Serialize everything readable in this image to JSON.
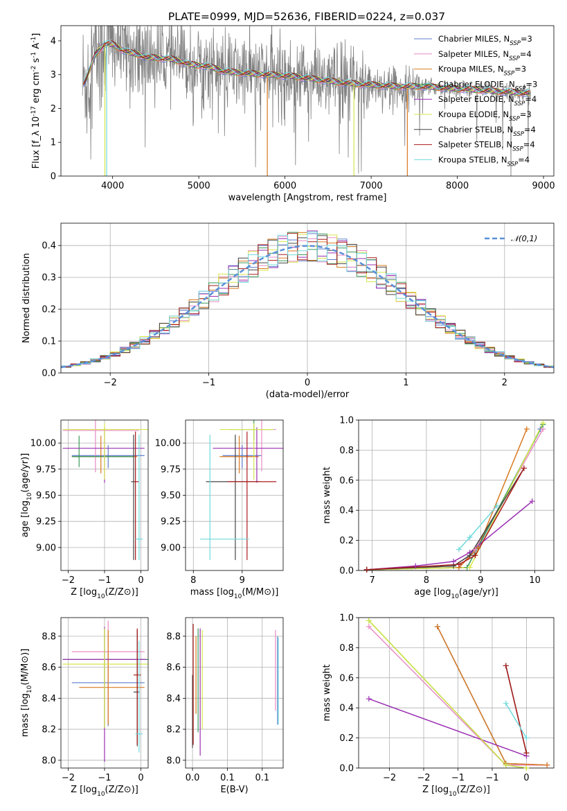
{
  "figure": {
    "title": "PLATE=0999, MJD=52636, FIBERID=0224, z=0.037"
  },
  "series_styles": [
    {
      "name": "Chabrier MILES, N$_{SSP}$=3",
      "color": "#5b7ccc"
    },
    {
      "name": "Salpeter MILES, N$_{SSP}$=4",
      "color": "#e98bc4"
    },
    {
      "name": "Kroupa MILES, N$_{SSP}$=3",
      "color": "#d9791e"
    },
    {
      "name": "Chabrier ELODIE, N$_{SSP}$=3",
      "color": "#3a9a5a"
    },
    {
      "name": "Salpeter ELODIE, N$_{SSP}$=4",
      "color": "#9a2fb2"
    },
    {
      "name": "Kroupa ELODIE, N$_{SSP}$=3",
      "color": "#d6e64a"
    },
    {
      "name": "Chabrier STELIB, N$_{SSP}$=4",
      "color": "#444444"
    },
    {
      "name": "Salpeter STELIB, N$_{SSP}$=4",
      "color": "#aa1a1a"
    },
    {
      "name": "Kroupa STELIB, N$_{SSP}$=4",
      "color": "#6fd9dc"
    }
  ],
  "chart_data": [
    {
      "type": "line",
      "title": "PLATE=0999, MJD=52636, FIBERID=0224, z=0.037",
      "xlabel": "wavelength [Angstrom, rest frame]",
      "ylabel": "Flux [f_λ 10^-17 erg cm^-2 s^-1 A^-1]",
      "xlim": [
        3400,
        9120
      ],
      "ylim": [
        0,
        4.45
      ],
      "xticks": [
        4000,
        5000,
        6000,
        7000,
        8000,
        9000
      ],
      "yticks": [
        0,
        1,
        2,
        3,
        4
      ],
      "data_color": "#808080",
      "model": {
        "x": [
          3650,
          3700,
          3800,
          3900,
          4000,
          4100,
          4200,
          4300,
          4400,
          4500,
          4700,
          4900,
          5100,
          5300,
          5500,
          5800,
          6100,
          6400,
          6700,
          7000,
          7300,
          7600,
          7900,
          8200,
          8500,
          8850
        ],
        "y": [
          2.7,
          2.9,
          3.6,
          3.9,
          3.9,
          3.75,
          3.65,
          3.6,
          3.5,
          3.5,
          3.45,
          3.3,
          3.25,
          3.1,
          3.05,
          3.0,
          2.95,
          2.85,
          2.75,
          2.7,
          2.65,
          2.65,
          2.6,
          2.55,
          2.5,
          2.45
        ]
      },
      "legend": [
        "Chabrier MILES, N$_{SSP}$=3",
        "Salpeter MILES, N$_{SSP}$=4",
        "Kroupa MILES, N$_{SSP}$=3",
        "Chabrier ELODIE, N$_{SSP}$=3",
        "Salpeter ELODIE, N$_{SSP}$=4",
        "Kroupa ELODIE, N$_{SSP}$=3",
        "Chabrier STELIB, N$_{SSP}$=4",
        "Salpeter STELIB, N$_{SSP}$=4",
        "Kroupa STELIB, N$_{SSP}$=4"
      ],
      "legend_position": "right"
    },
    {
      "type": "histogram",
      "xlabel": "(data-model)/error",
      "ylabel": "Normed distribution",
      "xlim": [
        -2.5,
        2.5
      ],
      "ylim": [
        0,
        0.47
      ],
      "xticks": [
        -2,
        -1,
        0,
        1,
        2
      ],
      "yticks": [
        0.0,
        0.1,
        0.2,
        0.3,
        0.4
      ],
      "bin_width": 0.1,
      "bin_start": -2.5,
      "reference_curve": {
        "name": "𝒩(0,1)",
        "mean": 0,
        "sigma": 1
      },
      "legend": [
        "𝒩(0,1)"
      ],
      "legend_position": "top-right"
    },
    {
      "type": "errorbar",
      "xlabel": "Z [log10(Z/Z⊙)]",
      "ylabel": "age  [log10(age/yr)]",
      "xlim": [
        -2.2,
        0.2
      ],
      "ylim": [
        8.78,
        10.22
      ],
      "xticks": [
        -2,
        -1,
        0
      ],
      "yticks": [
        9.0,
        9.25,
        9.5,
        9.75,
        10.0
      ],
      "points": [
        {
          "series": 0,
          "x": -0.9,
          "y": 9.88,
          "xerr": [
            1.0,
            1.0
          ],
          "yerr": [
            0.12,
            0.1
          ]
        },
        {
          "series": 1,
          "x": -1.25,
          "y": 10.12,
          "xerr": [
            0.9,
            1.2
          ],
          "yerr": [
            0.4,
            0.1
          ]
        },
        {
          "series": 2,
          "x": -1.1,
          "y": 9.87,
          "xerr": [
            0.8,
            1.0
          ],
          "yerr": [
            0.16,
            0.2
          ]
        },
        {
          "series": 3,
          "x": -1.7,
          "y": 9.87,
          "xerr": [
            0.2,
            1.5
          ],
          "yerr": [
            0.1,
            0.2
          ]
        },
        {
          "series": 4,
          "x": -1.0,
          "y": 9.95,
          "xerr": [
            1.15,
            1.1
          ],
          "yerr": [
            0.33,
            0.2
          ]
        },
        {
          "series": 5,
          "x": -1.0,
          "y": 10.13,
          "xerr": [
            1.15,
            1.2
          ],
          "yerr": [
            0.48,
            0.06
          ]
        },
        {
          "series": 6,
          "x": -0.2,
          "y": 9.63,
          "xerr": [
            0.07,
            0.06
          ],
          "yerr": [
            0.75,
            0.45
          ]
        },
        {
          "series": 7,
          "x": -0.15,
          "y": 9.63,
          "xerr": [
            0.05,
            0.1
          ],
          "yerr": [
            0.75,
            0.48
          ]
        },
        {
          "series": 8,
          "x": -0.05,
          "y": 9.08,
          "xerr": [
            0.1,
            0.1
          ],
          "yerr": [
            0.2,
            1.0
          ]
        }
      ]
    },
    {
      "type": "errorbar",
      "xlabel": "mass [log10(M/M⊙)]",
      "xlim": [
        7.92,
        8.92
      ],
      "ylim": [
        8.78,
        10.22
      ],
      "xticks": [
        8.0,
        8.5
      ],
      "yticks": [
        9.0,
        9.25,
        9.5,
        9.75,
        10.0
      ],
      "points": [
        {
          "series": 0,
          "x": 8.5,
          "y": 9.88,
          "xerr": [
            0.2,
            0.2
          ],
          "yerr": [
            0.12,
            0.1
          ]
        },
        {
          "series": 1,
          "x": 8.7,
          "y": 10.13,
          "xerr": [
            0.25,
            0.15
          ],
          "yerr": [
            0.4,
            0.1
          ]
        },
        {
          "series": 2,
          "x": 8.47,
          "y": 9.87,
          "xerr": [
            0.2,
            0.2
          ],
          "yerr": [
            0.16,
            0.2
          ]
        },
        {
          "series": 3,
          "x": 8.62,
          "y": 10.13,
          "xerr": [
            0.25,
            0.2
          ],
          "yerr": [
            0.1,
            0.1
          ]
        },
        {
          "series": 4,
          "x": 8.65,
          "y": 9.95,
          "xerr": [
            0.45,
            0.3
          ],
          "yerr": [
            0.33,
            0.2
          ]
        },
        {
          "series": 5,
          "x": 8.62,
          "y": 10.13,
          "xerr": [
            0.35,
            0.2
          ],
          "yerr": [
            0.48,
            0.06
          ]
        },
        {
          "series": 6,
          "x": 8.43,
          "y": 9.63,
          "xerr": [
            0.3,
            0.25
          ],
          "yerr": [
            0.75,
            0.45
          ]
        },
        {
          "series": 7,
          "x": 8.55,
          "y": 9.63,
          "xerr": [
            0.2,
            0.3
          ],
          "yerr": [
            0.75,
            0.48
          ]
        },
        {
          "series": 8,
          "x": 8.17,
          "y": 9.08,
          "xerr": [
            0.1,
            0.4
          ],
          "yerr": [
            0.2,
            1.0
          ]
        }
      ]
    },
    {
      "type": "line",
      "xlabel": "age  [log10(age/yr)]",
      "ylabel": "mass weight",
      "xlim": [
        6.75,
        10.35
      ],
      "ylim": [
        0.0,
        1.0
      ],
      "xticks": [
        7,
        8,
        9,
        10
      ],
      "yticks": [
        0.0,
        0.2,
        0.4,
        0.6,
        0.8,
        1.0
      ],
      "series": [
        {
          "series": 0,
          "x": [
            6.9,
            8.6,
            8.95,
            10.1
          ],
          "y": [
            0.005,
            0.02,
            0.15,
            0.94
          ]
        },
        {
          "series": 1,
          "x": [
            6.9,
            8.6,
            8.9,
            10.15
          ],
          "y": [
            0.005,
            0.02,
            0.14,
            0.94
          ]
        },
        {
          "series": 2,
          "x": [
            6.9,
            8.6,
            8.95,
            9.85
          ],
          "y": [
            0.005,
            0.02,
            0.15,
            0.94
          ]
        },
        {
          "series": 3,
          "x": [
            6.9,
            8.75,
            10.15
          ],
          "y": [
            0.005,
            0.02,
            0.97
          ]
        },
        {
          "series": 4,
          "x": [
            6.9,
            7.8,
            8.5,
            8.8,
            9.95
          ],
          "y": [
            0.005,
            0.03,
            0.06,
            0.12,
            0.46
          ]
        },
        {
          "series": 5,
          "x": [
            6.9,
            8.8,
            10.15
          ],
          "y": [
            0.005,
            0.02,
            0.98
          ]
        },
        {
          "series": 6,
          "x": [
            6.9,
            8.5,
            8.8,
            9.8
          ],
          "y": [
            0.005,
            0.03,
            0.1,
            0.68
          ]
        },
        {
          "series": 7,
          "x": [
            6.9,
            8.6,
            8.9,
            9.8
          ],
          "y": [
            0.005,
            0.04,
            0.1,
            0.68
          ]
        },
        {
          "series": 8,
          "x": [
            8.6,
            8.8,
            9.3
          ],
          "y": [
            0.14,
            0.22,
            0.43
          ]
        }
      ]
    },
    {
      "type": "errorbar",
      "xlabel": "Z [log10(Z/Z⊙)]",
      "ylabel": "mass [log10(M/M⊙)]",
      "xlim": [
        -2.2,
        0.2
      ],
      "ylim": [
        7.95,
        8.92
      ],
      "xticks": [
        -2,
        -1,
        0
      ],
      "yticks": [
        8.0,
        8.2,
        8.4,
        8.6,
        8.8
      ],
      "points": [
        {
          "series": 0,
          "x": -0.9,
          "y": 8.5,
          "xerr": [
            1.0,
            1.0
          ],
          "yerr": [
            0.28,
            0.2
          ]
        },
        {
          "series": 1,
          "x": -0.9,
          "y": 8.7,
          "xerr": [
            1.0,
            1.0
          ],
          "yerr": [
            0.45,
            0.2
          ]
        },
        {
          "series": 2,
          "x": -0.9,
          "y": 8.47,
          "xerr": [
            0.8,
            1.0
          ],
          "yerr": [
            0.24,
            0.37
          ]
        },
        {
          "series": 3,
          "x": -1.0,
          "y": 8.65,
          "xerr": [
            1.15,
            1.2
          ],
          "yerr": [
            0.44,
            0.2
          ]
        },
        {
          "series": 4,
          "x": -1.0,
          "y": 8.65,
          "xerr": [
            1.15,
            1.15
          ],
          "yerr": [
            0.66,
            0.21
          ]
        },
        {
          "series": 5,
          "x": -1.0,
          "y": 8.62,
          "xerr": [
            1.15,
            1.2
          ],
          "yerr": [
            0.41,
            0.23
          ]
        },
        {
          "series": 6,
          "x": -0.1,
          "y": 8.44,
          "xerr": [
            0.1,
            0.07
          ],
          "yerr": [
            0.35,
            0.4
          ]
        },
        {
          "series": 7,
          "x": -0.1,
          "y": 8.55,
          "xerr": [
            0.1,
            0.1
          ],
          "yerr": [
            0.45,
            0.3
          ]
        },
        {
          "series": 8,
          "x": -0.05,
          "y": 8.17,
          "xerr": [
            0.1,
            0.1
          ],
          "yerr": [
            0.12,
            0.6
          ]
        }
      ]
    },
    {
      "type": "errorbar",
      "xlabel": "E(B-V)",
      "xlim": [
        -0.01,
        0.13
      ],
      "ylim": [
        7.95,
        8.92
      ],
      "xticks": [
        0.0,
        0.05,
        0.1
      ],
      "yticks": [
        8.0,
        8.2,
        8.4,
        8.6,
        8.8
      ],
      "points": [
        {
          "series": 0,
          "x": 0.122,
          "y": 8.5,
          "yerr": [
            0.27,
            0.3
          ]
        },
        {
          "series": 1,
          "x": 0.119,
          "y": 8.7,
          "yerr": [
            0.38,
            0.14
          ]
        },
        {
          "series": 2,
          "x": 0.005,
          "y": 8.5,
          "yerr": [
            0.2,
            0.3
          ]
        },
        {
          "series": 3,
          "x": 0.008,
          "y": 8.6,
          "yerr": [
            0.42,
            0.25
          ]
        },
        {
          "series": 4,
          "x": 0.011,
          "y": 8.65,
          "yerr": [
            0.62,
            0.2
          ]
        },
        {
          "series": 5,
          "x": 0.014,
          "y": 8.6,
          "yerr": [
            0.4,
            0.24
          ]
        },
        {
          "series": 6,
          "x": 0.0,
          "y": 8.45,
          "yerr": [
            0.37,
            0.1
          ]
        },
        {
          "series": 7,
          "x": 0.001,
          "y": 8.55,
          "yerr": [
            0.45,
            0.33
          ]
        },
        {
          "series": 8,
          "x": 0.123,
          "y": 8.5,
          "yerr": [
            0.27,
            0.29
          ]
        }
      ]
    },
    {
      "type": "line",
      "xlabel": "Z [log10(Z/Z⊙)]",
      "ylabel": "mass weight",
      "xlim": [
        -2.45,
        0.4
      ],
      "ylim": [
        0.0,
        1.0
      ],
      "xticks": [
        -2.0,
        -1.5,
        -1.0,
        -0.5,
        0.0
      ],
      "yticks": [
        0.0,
        0.2,
        0.4,
        0.6,
        0.8,
        1.0
      ],
      "series": [
        {
          "series": 0,
          "x": [
            -1.3,
            -0.3,
            0.3
          ],
          "y": [
            0.94,
            0.03,
            0.02
          ]
        },
        {
          "series": 1,
          "x": [
            -2.3,
            -0.3,
            0.3
          ],
          "y": [
            0.94,
            0.02,
            0.02
          ]
        },
        {
          "series": 2,
          "x": [
            -1.3,
            -0.3,
            0.3
          ],
          "y": [
            0.94,
            0.03,
            0.02
          ]
        },
        {
          "series": 3,
          "x": [
            -2.3,
            -0.3,
            0.0
          ],
          "y": [
            0.98,
            0.02,
            0.0
          ]
        },
        {
          "series": 4,
          "x": [
            -2.3,
            0.0
          ],
          "y": [
            0.46,
            0.08
          ]
        },
        {
          "series": 5,
          "x": [
            -2.3,
            -0.3,
            0.0
          ],
          "y": [
            0.98,
            0.02,
            0.0
          ]
        },
        {
          "series": 6,
          "x": [
            -0.3,
            0.0
          ],
          "y": [
            0.68,
            0.1
          ]
        },
        {
          "series": 7,
          "x": [
            -0.3,
            0.0
          ],
          "y": [
            0.68,
            0.1
          ]
        },
        {
          "series": 8,
          "x": [
            -0.3,
            0.0
          ],
          "y": [
            0.43,
            0.2
          ]
        }
      ]
    }
  ]
}
